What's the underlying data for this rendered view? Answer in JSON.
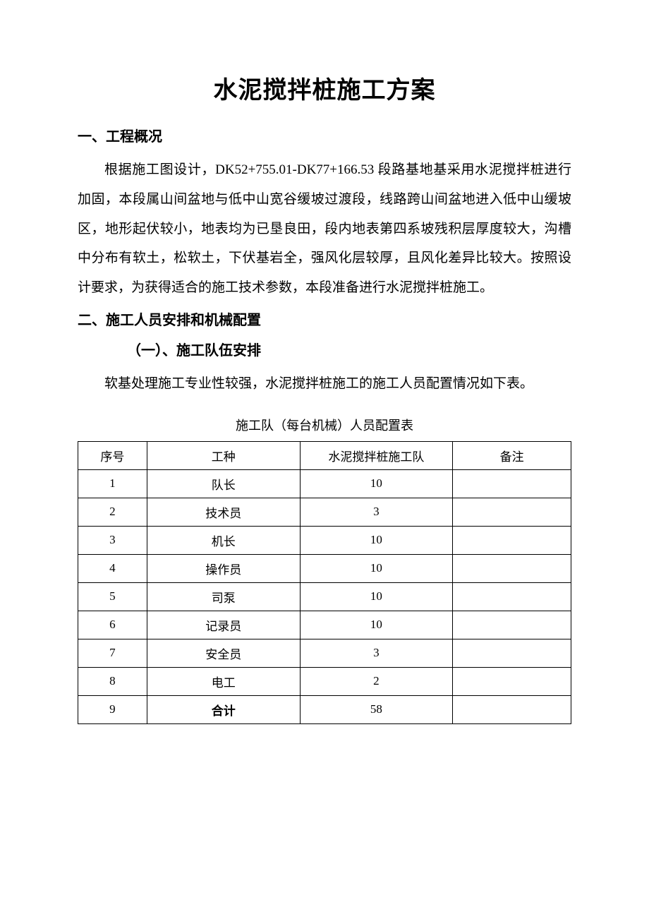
{
  "title": "水泥搅拌桩施工方案",
  "section1": {
    "heading": "一、工程概况",
    "para": "根据施工图设计，DK52+755.01-DK77+166.53 段路基地基采用水泥搅拌桩进行加固，本段属山间盆地与低中山宽谷缓坡过渡段，线路跨山间盆地进入低中山缓坡区，地形起伏较小，地表均为已垦良田，段内地表第四系坡残积层厚度较大，沟槽中分布有软土，松软土，下伏基岩全，强风化层较厚，且风化差异比较大。按照设计要求，为获得适合的施工技术参数，本段准备进行水泥搅拌桩施工。"
  },
  "section2": {
    "heading": "二、施工人员安排和机械配置",
    "sub1_heading": "（一）、施工队伍安排",
    "para": "软基处理施工专业性较强，水泥搅拌桩施工的施工人员配置情况如下表。"
  },
  "table": {
    "caption": "施工队（每台机械）人员配置表",
    "columns": [
      "序号",
      "工种",
      "水泥搅拌桩施工队",
      "备注"
    ],
    "rows": [
      [
        "1",
        "队长",
        "10",
        ""
      ],
      [
        "2",
        "技术员",
        "3",
        ""
      ],
      [
        "3",
        "机长",
        "10",
        ""
      ],
      [
        "4",
        "操作员",
        "10",
        ""
      ],
      [
        "5",
        "司泵",
        "10",
        ""
      ],
      [
        "6",
        "记录员",
        "10",
        ""
      ],
      [
        "7",
        "安全员",
        "3",
        ""
      ],
      [
        "8",
        "电工",
        "2",
        ""
      ],
      [
        "9",
        "合计",
        "58",
        ""
      ]
    ],
    "bold_last_role": true,
    "col_widths": [
      "14%",
      "31%",
      "31%",
      "24%"
    ],
    "border_color": "#000000",
    "cell_fontsize": 17
  },
  "colors": {
    "background": "#ffffff",
    "text": "#000000"
  },
  "typography": {
    "title_fontsize": 34,
    "heading_fontsize": 20,
    "body_fontsize": 19,
    "caption_fontsize": 18,
    "body_line_height": 2.2
  }
}
